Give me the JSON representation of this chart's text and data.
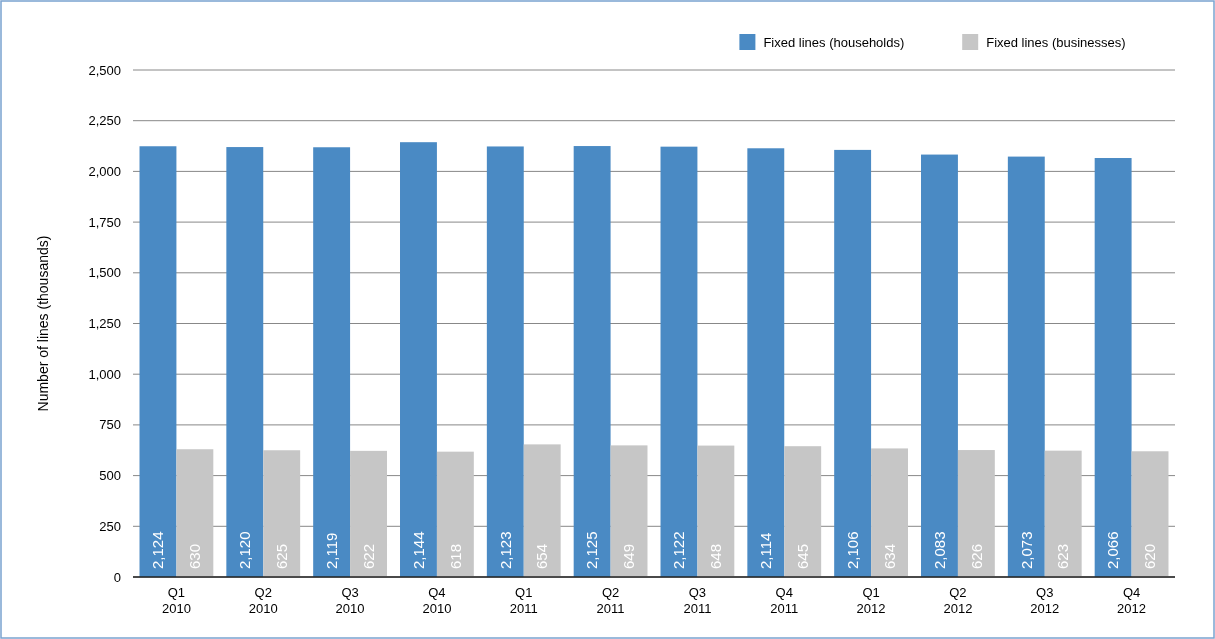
{
  "chart_data": {
    "type": "bar",
    "ylabel": "Number of lines (thousands)",
    "categories": [
      "Q1 2010",
      "Q2 2010",
      "Q3 2010",
      "Q4 2010",
      "Q1 2011",
      "Q2 2011",
      "Q3 2011",
      "Q4 2011",
      "Q1 2012",
      "Q2 2012",
      "Q3 2012",
      "Q4 2012"
    ],
    "series": [
      {
        "name": "Fixed lines (households)",
        "color": "#4a8ac4",
        "values": [
          2124,
          2120,
          2119,
          2144,
          2123,
          2125,
          2122,
          2114,
          2106,
          2083,
          2073,
          2066
        ],
        "value_labels": [
          "2,124",
          "2,120",
          "2,119",
          "2,144",
          "2,123",
          "2,125",
          "2,122",
          "2,114",
          "2,106",
          "2,083",
          "2,073",
          "2,066"
        ]
      },
      {
        "name": "Fixed lines (businesses)",
        "color": "#c6c6c6",
        "values": [
          630,
          625,
          622,
          618,
          654,
          649,
          648,
          645,
          634,
          626,
          623,
          620
        ],
        "value_labels": [
          "630",
          "625",
          "622",
          "618",
          "654",
          "649",
          "648",
          "645",
          "634",
          "626",
          "623",
          "620"
        ]
      }
    ],
    "ylim": [
      0,
      2500
    ],
    "yticks": [
      {
        "value": 0,
        "label": "0"
      },
      {
        "value": 250,
        "label": "250"
      },
      {
        "value": 500,
        "label": "500"
      },
      {
        "value": 750,
        "label": "750"
      },
      {
        "value": 1000,
        "label": "1,000"
      },
      {
        "value": 1250,
        "label": "1,250"
      },
      {
        "value": 1500,
        "label": "1,500"
      },
      {
        "value": 1750,
        "label": "1,750"
      },
      {
        "value": 2000,
        "label": "2,000"
      },
      {
        "value": 2250,
        "label": "2,250"
      },
      {
        "value": 2500,
        "label": "2,500"
      }
    ],
    "grid": "y",
    "legend": "top right"
  }
}
